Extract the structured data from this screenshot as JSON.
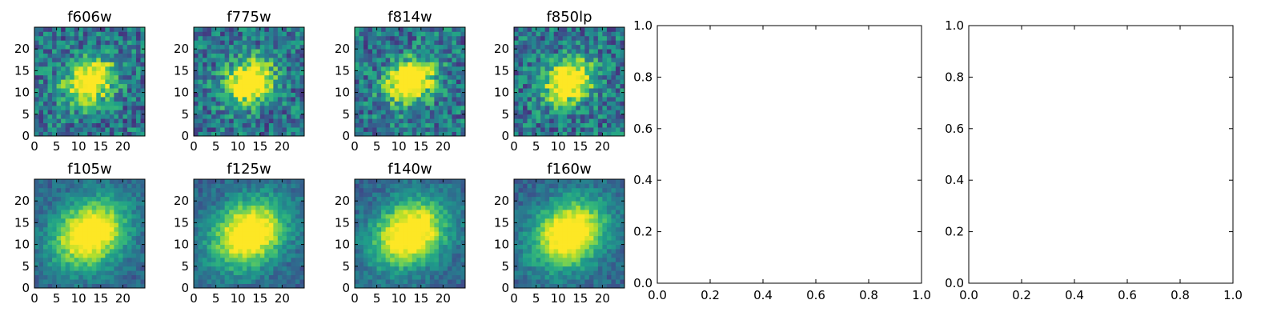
{
  "chart_data": [
    {
      "type": "heatmap",
      "title": "f606w",
      "colormap": "viridis",
      "xticks": [
        "0",
        "5",
        "10",
        "15",
        "20"
      ],
      "yticks": [
        "0",
        "5",
        "10",
        "15",
        "20"
      ],
      "xlim": [
        0,
        25
      ],
      "ylim": [
        0,
        25
      ]
    },
    {
      "type": "heatmap",
      "title": "f775w",
      "colormap": "viridis",
      "xticks": [
        "0",
        "5",
        "10",
        "15",
        "20"
      ],
      "yticks": [
        "0",
        "5",
        "10",
        "15",
        "20"
      ],
      "xlim": [
        0,
        25
      ],
      "ylim": [
        0,
        25
      ]
    },
    {
      "type": "heatmap",
      "title": "f814w",
      "colormap": "viridis",
      "xticks": [
        "0",
        "5",
        "10",
        "15",
        "20"
      ],
      "yticks": [
        "0",
        "5",
        "10",
        "15",
        "20"
      ],
      "xlim": [
        0,
        25
      ],
      "ylim": [
        0,
        25
      ]
    },
    {
      "type": "heatmap",
      "title": "f850lp",
      "colormap": "viridis",
      "xticks": [
        "0",
        "5",
        "10",
        "15",
        "20"
      ],
      "yticks": [
        "0",
        "5",
        "10",
        "15",
        "20"
      ],
      "xlim": [
        0,
        25
      ],
      "ylim": [
        0,
        25
      ]
    },
    {
      "type": "heatmap",
      "title": "f105w",
      "colormap": "viridis",
      "xticks": [
        "0",
        "5",
        "10",
        "15",
        "20"
      ],
      "yticks": [
        "0",
        "5",
        "10",
        "15",
        "20"
      ],
      "xlim": [
        0,
        25
      ],
      "ylim": [
        0,
        25
      ]
    },
    {
      "type": "heatmap",
      "title": "f125w",
      "colormap": "viridis",
      "xticks": [
        "0",
        "5",
        "10",
        "15",
        "20"
      ],
      "yticks": [
        "0",
        "5",
        "10",
        "15",
        "20"
      ],
      "xlim": [
        0,
        25
      ],
      "ylim": [
        0,
        25
      ]
    },
    {
      "type": "heatmap",
      "title": "f140w",
      "colormap": "viridis",
      "xticks": [
        "0",
        "5",
        "10",
        "15",
        "20"
      ],
      "yticks": [
        "0",
        "5",
        "10",
        "15",
        "20"
      ],
      "xlim": [
        0,
        25
      ],
      "ylim": [
        0,
        25
      ]
    },
    {
      "type": "heatmap",
      "title": "f160w",
      "colormap": "viridis",
      "xticks": [
        "0",
        "5",
        "10",
        "15",
        "20"
      ],
      "yticks": [
        "0",
        "5",
        "10",
        "15",
        "20"
      ],
      "xlim": [
        0,
        25
      ],
      "ylim": [
        0,
        25
      ]
    },
    {
      "type": "scatter",
      "title": "",
      "x": [],
      "y": [],
      "xlim": [
        0.0,
        1.0
      ],
      "ylim": [
        0.0,
        1.0
      ],
      "xticks": [
        "0.0",
        "0.2",
        "0.4",
        "0.6",
        "0.8",
        "1.0"
      ],
      "yticks": [
        "0.0",
        "0.2",
        "0.4",
        "0.6",
        "0.8",
        "1.0"
      ]
    },
    {
      "type": "scatter",
      "title": "",
      "x": [],
      "y": [],
      "xlim": [
        0.0,
        1.0
      ],
      "ylim": [
        0.0,
        1.0
      ],
      "xticks": [
        "0.0",
        "0.2",
        "0.4",
        "0.6",
        "0.8",
        "1.0"
      ],
      "yticks": [
        "0.0",
        "0.2",
        "0.4",
        "0.6",
        "0.8",
        "1.0"
      ]
    }
  ]
}
